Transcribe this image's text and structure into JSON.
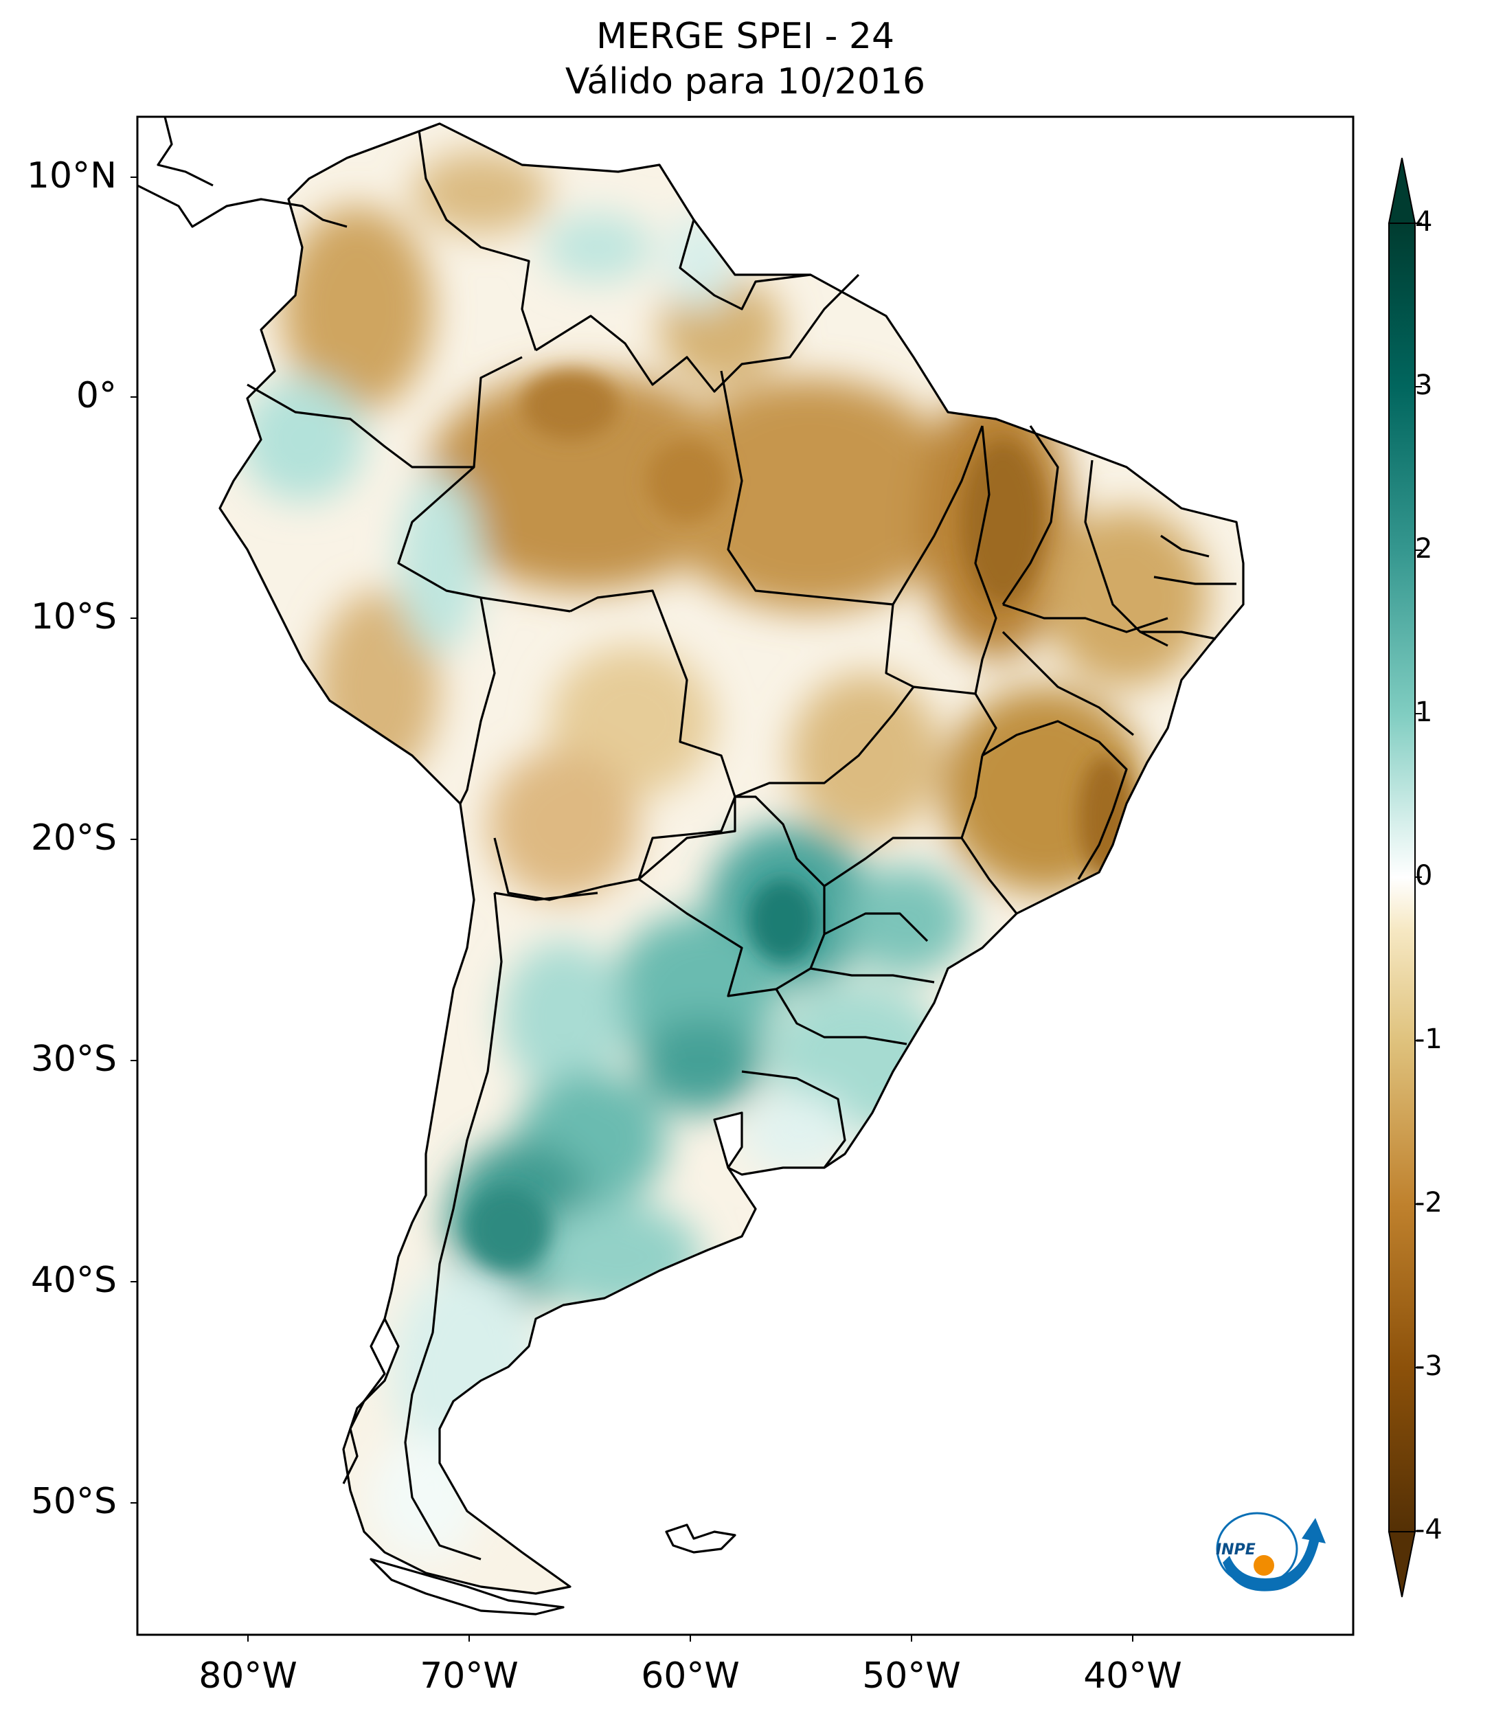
{
  "title": {
    "line1": "MERGE   SPEI - 24",
    "line2": "Válido para 10/2016"
  },
  "map": {
    "type": "filled contour map",
    "variable": "SPEI - 24",
    "region": "South America",
    "lon_range": [
      -85,
      -30
    ],
    "lat_range": [
      -56,
      13
    ],
    "lat_ticks": [
      "10°N",
      "0°",
      "10°S",
      "20°S",
      "30°S",
      "40°S",
      "50°S"
    ],
    "lon_ticks": [
      "80°W",
      "70°W",
      "60°W",
      "50°W",
      "40°W"
    ],
    "patterns": [
      {
        "area": "Northern and northeastern Brazil",
        "tendency": "dry",
        "range": [
          -3,
          -1
        ]
      },
      {
        "area": "Southern Brazil, Paraguay, northern and central Argentina",
        "tendency": "wet",
        "range": [
          1,
          3
        ]
      },
      {
        "area": "Western Amazon / Peru-Colombia border",
        "tendency": "wet",
        "range": [
          0.5,
          2
        ]
      },
      {
        "area": "Patagonia",
        "tendency": "near normal",
        "range": [
          -0.5,
          1
        ]
      }
    ]
  },
  "colorbar": {
    "ticks": [
      "4",
      "3",
      "2",
      "1",
      "0",
      "-1",
      "-2",
      "-3",
      "-4"
    ],
    "range": [
      -4,
      4
    ],
    "extend": "both",
    "colors": [
      "#543005",
      "#8c510a",
      "#bf812d",
      "#dfc27d",
      "#f6e8c3",
      "#ffffff",
      "#c7eae5",
      "#80cdc1",
      "#35978f",
      "#01665e",
      "#003c30"
    ]
  },
  "logo": {
    "text": "INPE",
    "colors": {
      "blue": "#0a6fb5",
      "orange": "#f28c00"
    }
  }
}
